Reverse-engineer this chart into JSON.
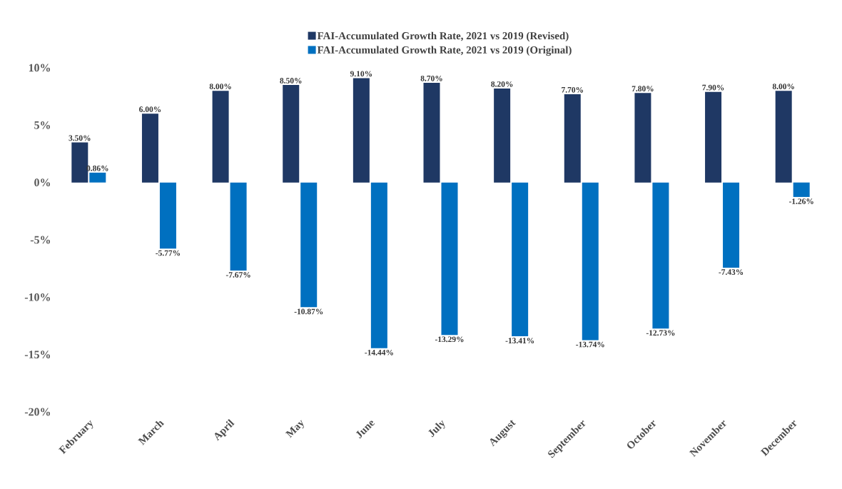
{
  "chart_data": {
    "type": "bar",
    "categories": [
      "February",
      "March",
      "April",
      "May",
      "June",
      "July",
      "August",
      "September",
      "October",
      "November",
      "December"
    ],
    "series": [
      {
        "name": "FAI-Accumulated Growth Rate, 2021 vs 2019 (Revised)",
        "color": "#1f3864",
        "values": [
          3.5,
          6.0,
          8.0,
          8.5,
          9.1,
          8.7,
          8.2,
          7.7,
          7.8,
          7.9,
          8.0
        ],
        "value_labels": [
          "3.50%",
          "6.00%",
          "8.00%",
          "8.50%",
          "9.10%",
          "8.70%",
          "8.20%",
          "7.70%",
          "7.80%",
          "7.90%",
          "8.00%"
        ]
      },
      {
        "name": "FAI-Accumulated Growth Rate, 2021 vs 2019 (Original)",
        "color": "#0070c0",
        "values": [
          0.86,
          -5.77,
          -7.67,
          -10.87,
          -14.44,
          -13.29,
          -13.41,
          -13.74,
          -12.73,
          -7.43,
          -1.26
        ],
        "value_labels": [
          "0.86%",
          "-5.77%",
          "-7.67%",
          "-10.87%",
          "-14.44%",
          "-13.29%",
          "-13.41%",
          "-13.74%",
          "-12.73%",
          "-7.43%",
          "-1.26%"
        ]
      }
    ],
    "ylim": [
      -20,
      10
    ],
    "yticks": [
      {
        "value": 10,
        "label": "10%"
      },
      {
        "value": 5,
        "label": "5%"
      },
      {
        "value": 0,
        "label": "0%"
      },
      {
        "value": -5,
        "label": "-5%"
      },
      {
        "value": -10,
        "label": "-10%"
      },
      {
        "value": -15,
        "label": "-15%"
      },
      {
        "value": -20,
        "label": "-20%"
      }
    ],
    "grid": false,
    "legend": "top"
  }
}
